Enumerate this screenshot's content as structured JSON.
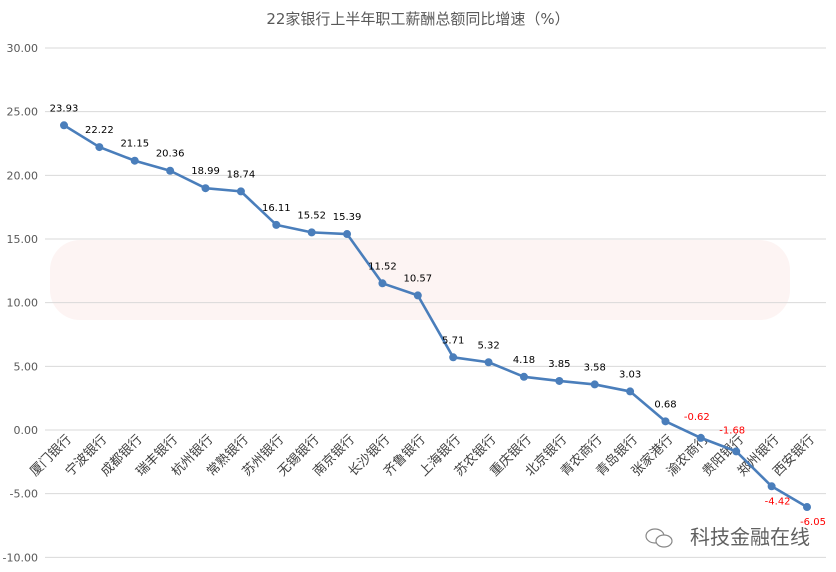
{
  "chart_data": {
    "type": "line",
    "title": "22家银行上半年职工薪酬总额同比增速（%）",
    "xlabel": "",
    "ylabel": "",
    "ylim": [
      -10,
      30
    ],
    "yticks": [
      "30.00",
      "25.00",
      "20.00",
      "15.00",
      "10.00",
      "5.00",
      "0.00",
      "-5.00",
      "-10.00"
    ],
    "grid": true,
    "categories": [
      "厦门银行",
      "宁波银行",
      "成都银行",
      "瑞丰银行",
      "杭州银行",
      "常熟银行",
      "苏州银行",
      "无锡银行",
      "南京银行",
      "长沙银行",
      "齐鲁银行",
      "上海银行",
      "苏农银行",
      "重庆银行",
      "北京银行",
      "青农商行",
      "青岛银行",
      "张家港行",
      "渝农商行",
      "贵阳银行",
      "郑州银行",
      "西安银行"
    ],
    "series": [
      {
        "values": [
          23.93,
          22.22,
          21.15,
          20.36,
          18.99,
          18.74,
          16.11,
          15.52,
          15.39,
          11.52,
          10.57,
          5.71,
          5.32,
          4.18,
          3.85,
          3.58,
          3.03,
          0.68,
          -0.62,
          -1.68,
          -4.42,
          -6.05
        ],
        "color": "#4a7ebb"
      }
    ],
    "data_labels": [
      "23.93",
      "22.22",
      "21.15",
      "20.36",
      "18.99",
      "18.74",
      "16.11",
      "15.52",
      "15.39",
      "11.52",
      "10.57",
      "5.71",
      "5.32",
      "4.18",
      "3.85",
      "3.58",
      "3.03",
      "0.68",
      "-0.62",
      "-1.68",
      "-4.42",
      "-6.05"
    ],
    "positive_label_color": "#000000",
    "negative_label_color": "#ff0000"
  },
  "watermark": "科技金融在线",
  "logo_text": "科技金融在线",
  "logo_icon": "wechat-icon"
}
